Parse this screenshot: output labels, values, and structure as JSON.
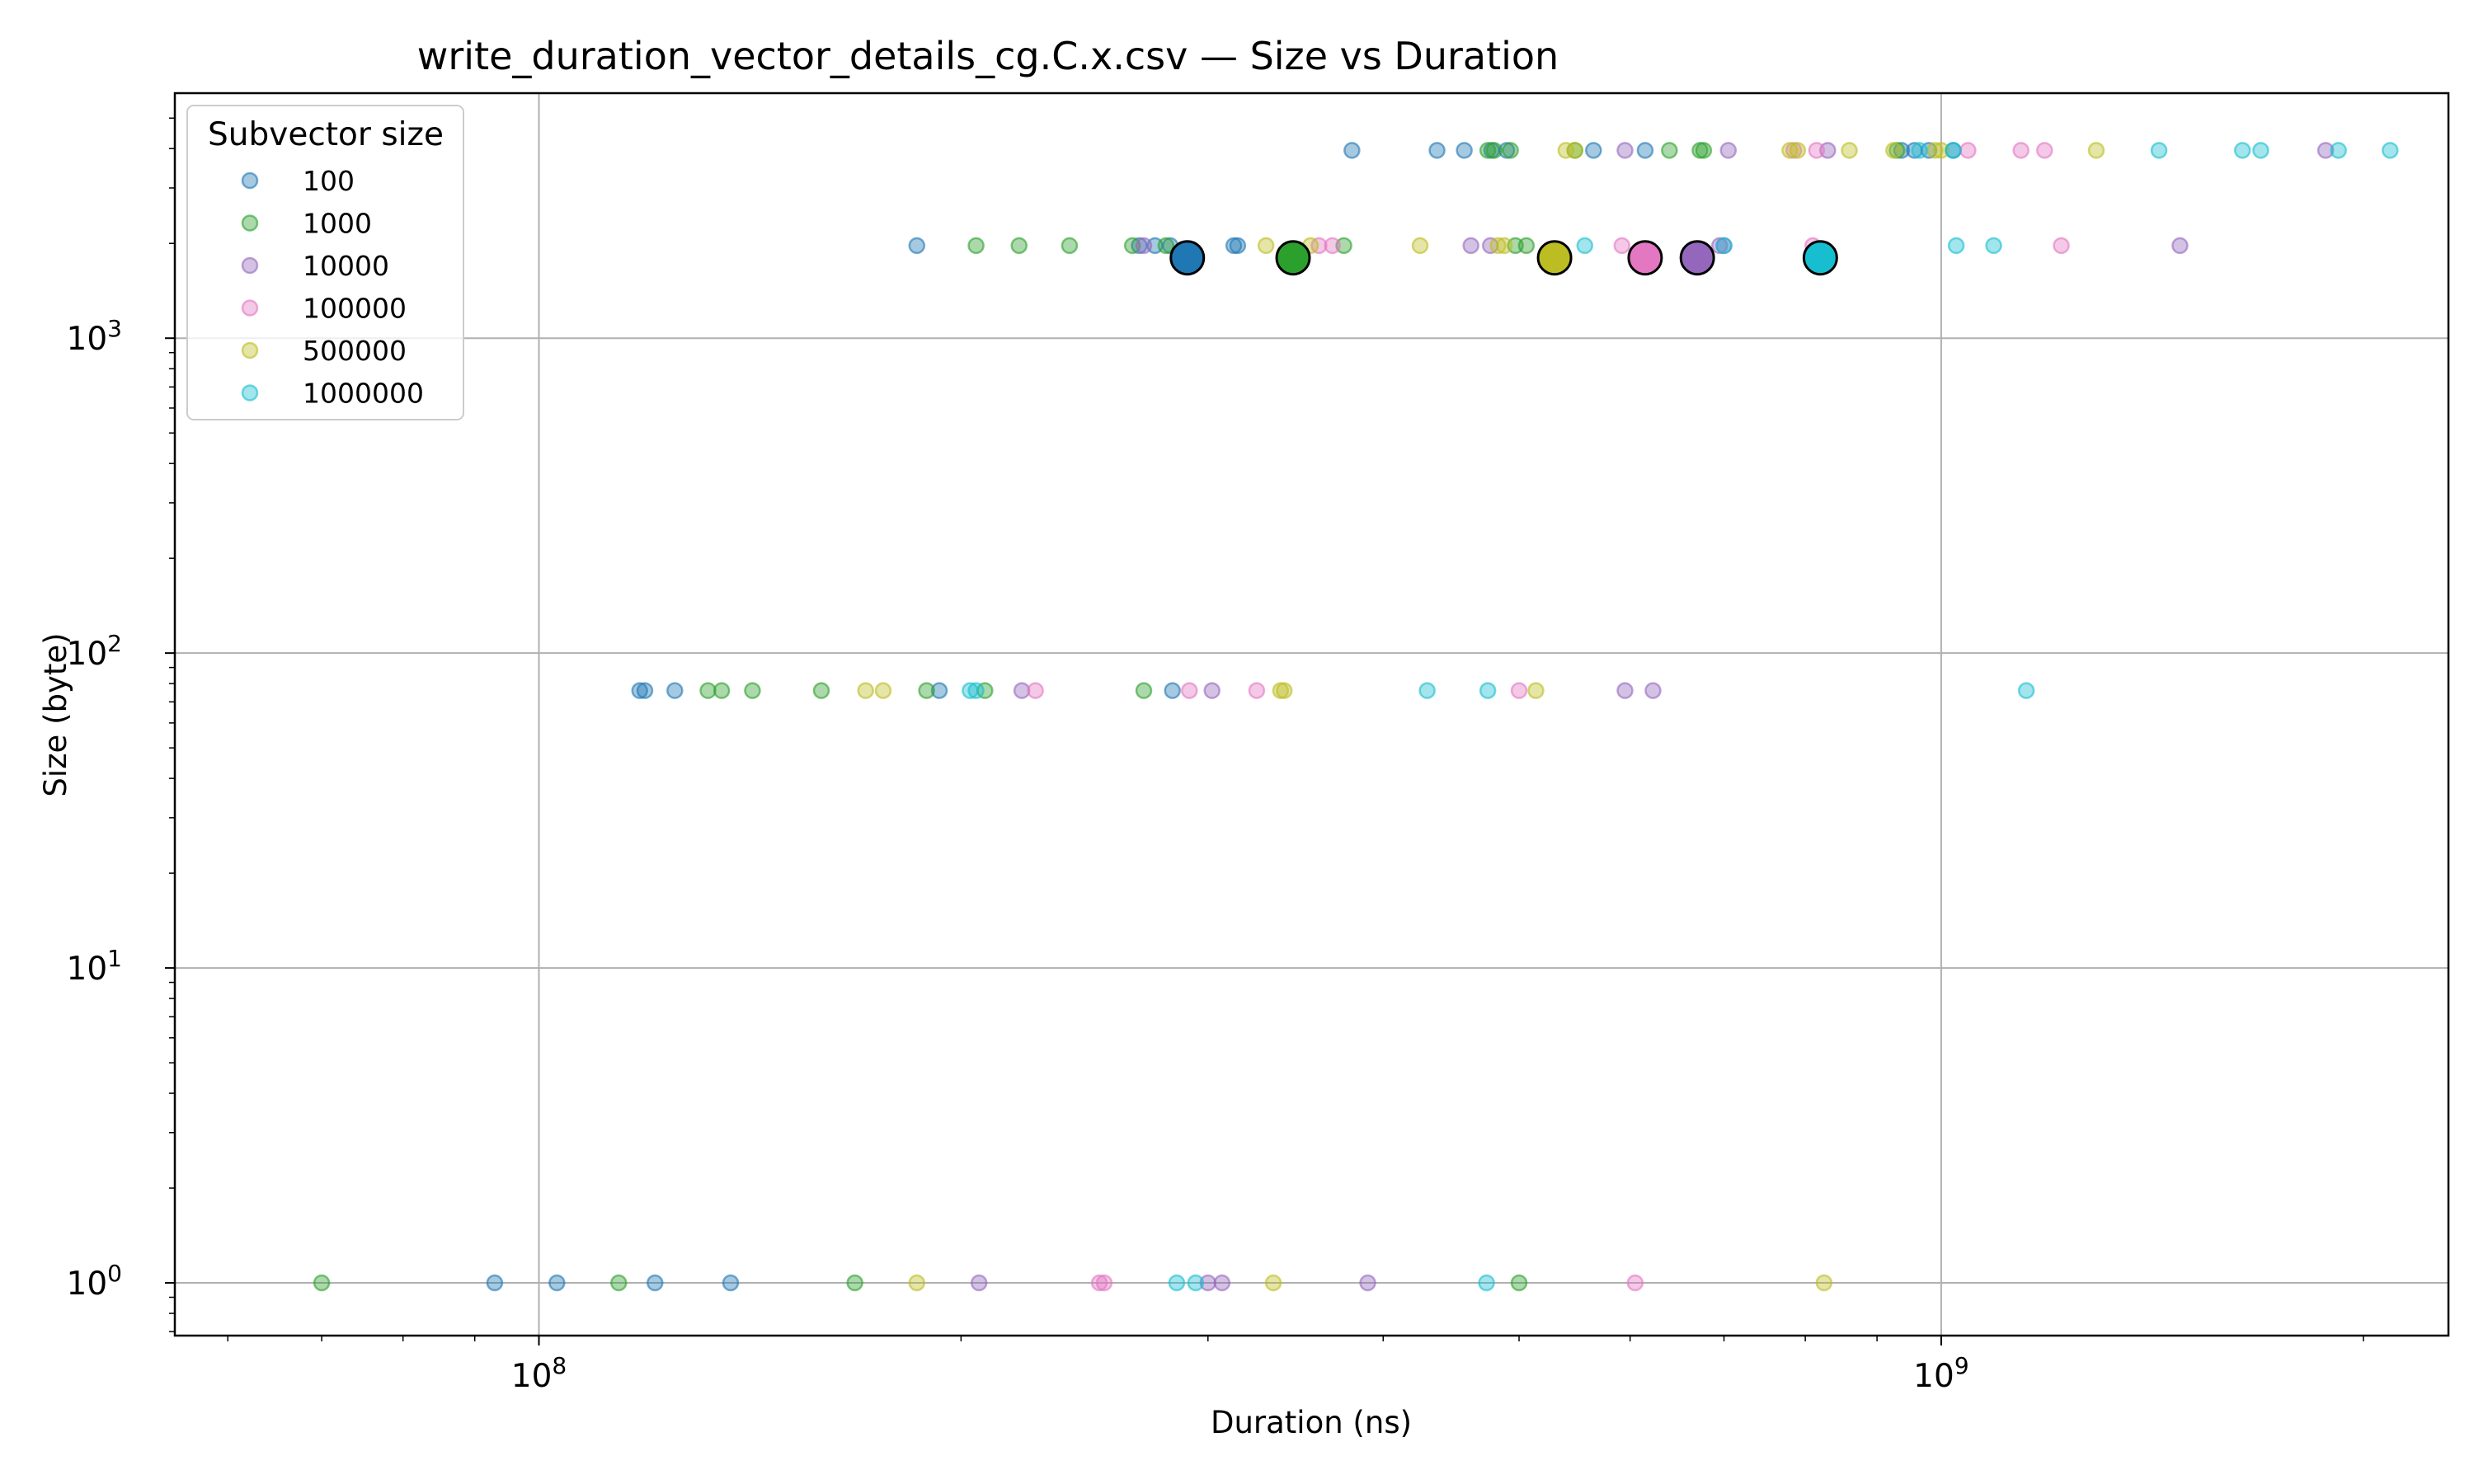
{
  "chart_data": {
    "type": "scatter",
    "title": "write_duration_vector_details_cg.C.x.csv — Size vs Duration",
    "xlabel": "Duration (ns)",
    "ylabel": "Size (byte)",
    "xscale": "log",
    "yscale": "log",
    "xlim": [
      55000000,
      2300000000
    ],
    "ylim": [
      0.68,
      6000
    ],
    "grid": true,
    "x_major_ticks": [
      {
        "value": 100000000,
        "base": "10",
        "exp": "8"
      },
      {
        "value": 1000000000,
        "base": "10",
        "exp": "9"
      }
    ],
    "y_major_ticks": [
      {
        "value": 1,
        "base": "10",
        "exp": "0"
      },
      {
        "value": 10,
        "base": "10",
        "exp": "1"
      },
      {
        "value": 100,
        "base": "10",
        "exp": "2"
      },
      {
        "value": 1000,
        "base": "10",
        "exp": "3"
      }
    ],
    "legend": {
      "title": "Subvector size",
      "position": "top-left"
    },
    "series": [
      {
        "name": "100",
        "color": "#1f77b4",
        "mean": [
          290000000,
          1800
        ],
        "points": [
          [
            93000000,
            1
          ],
          [
            103000000,
            1
          ],
          [
            121000000,
            1
          ],
          [
            137000000,
            1
          ],
          [
            118000000,
            76
          ],
          [
            119000000,
            76
          ],
          [
            125000000,
            76
          ],
          [
            193000000,
            76
          ],
          [
            283000000,
            76
          ],
          [
            186000000,
            1968
          ],
          [
            268000000,
            1968
          ],
          [
            275000000,
            1968
          ],
          [
            282000000,
            1968
          ],
          [
            313000000,
            1968
          ],
          [
            315000000,
            1968
          ],
          [
            380000000,
            3950
          ],
          [
            437000000,
            3950
          ],
          [
            457000000,
            3950
          ],
          [
            478000000,
            3950
          ],
          [
            490000000,
            3950
          ],
          [
            565000000,
            3950
          ],
          [
            615000000,
            3950
          ],
          [
            937000000,
            3950
          ],
          [
            957000000,
            3950
          ],
          [
            980000000,
            3950
          ],
          [
            1020000000,
            3950
          ]
        ]
      },
      {
        "name": "1000",
        "color": "#2ca02c",
        "mean": [
          345000000,
          1800
        ],
        "points": [
          [
            70000000,
            1
          ],
          [
            114000000,
            1
          ],
          [
            168000000,
            1
          ],
          [
            500000000,
            1
          ],
          [
            132000000,
            76
          ],
          [
            135000000,
            76
          ],
          [
            142000000,
            76
          ],
          [
            159000000,
            76
          ],
          [
            189000000,
            76
          ],
          [
            208000000,
            76
          ],
          [
            270000000,
            76
          ],
          [
            205000000,
            1968
          ],
          [
            220000000,
            1968
          ],
          [
            239000000,
            1968
          ],
          [
            265000000,
            1968
          ],
          [
            280000000,
            1968
          ],
          [
            375000000,
            1968
          ],
          [
            497000000,
            1968
          ],
          [
            506000000,
            1968
          ],
          [
            475000000,
            3950
          ],
          [
            480000000,
            3950
          ],
          [
            493000000,
            3950
          ],
          [
            548000000,
            3950
          ],
          [
            640000000,
            3950
          ],
          [
            673000000,
            3950
          ],
          [
            677000000,
            3950
          ],
          [
            930000000,
            3950
          ]
        ]
      },
      {
        "name": "10000",
        "color": "#9467bd",
        "mean": [
          670000000,
          1800
        ],
        "points": [
          [
            206000000,
            1
          ],
          [
            300000000,
            1
          ],
          [
            307000000,
            1
          ],
          [
            390000000,
            1
          ],
          [
            221000000,
            76
          ],
          [
            302000000,
            76
          ],
          [
            595000000,
            76
          ],
          [
            623000000,
            76
          ],
          [
            270000000,
            1968
          ],
          [
            462000000,
            1968
          ],
          [
            477000000,
            1968
          ],
          [
            695000000,
            1968
          ],
          [
            700000000,
            1968
          ],
          [
            1480000000,
            1968
          ],
          [
            595000000,
            3950
          ],
          [
            705000000,
            3950
          ],
          [
            830000000,
            3950
          ],
          [
            1880000000,
            3950
          ]
        ]
      },
      {
        "name": "100000",
        "color": "#e377c2",
        "mean": [
          615000000,
          1800
        ],
        "points": [
          [
            251000000,
            1
          ],
          [
            253000000,
            1
          ],
          [
            605000000,
            1
          ],
          [
            226000000,
            76
          ],
          [
            291000000,
            76
          ],
          [
            325000000,
            76
          ],
          [
            500000000,
            76
          ],
          [
            360000000,
            1968
          ],
          [
            368000000,
            1968
          ],
          [
            592000000,
            1968
          ],
          [
            810000000,
            1968
          ],
          [
            1218000000,
            1968
          ],
          [
            785000000,
            3950
          ],
          [
            815000000,
            3950
          ],
          [
            1045000000,
            3950
          ],
          [
            1140000000,
            3950
          ],
          [
            1185000000,
            3950
          ]
        ]
      },
      {
        "name": "500000",
        "color": "#bcbd22",
        "mean": [
          530000000,
          1800
        ],
        "points": [
          [
            186000000,
            1
          ],
          [
            334000000,
            1
          ],
          [
            825000000,
            1
          ],
          [
            171000000,
            76
          ],
          [
            176000000,
            76
          ],
          [
            338000000,
            76
          ],
          [
            340000000,
            76
          ],
          [
            514000000,
            76
          ],
          [
            330000000,
            1968
          ],
          [
            355000000,
            1968
          ],
          [
            425000000,
            1968
          ],
          [
            483000000,
            1968
          ],
          [
            488000000,
            1968
          ],
          [
            540000000,
            3950
          ],
          [
            548000000,
            3950
          ],
          [
            780000000,
            3950
          ],
          [
            790000000,
            3950
          ],
          [
            860000000,
            3950
          ],
          [
            925000000,
            3950
          ],
          [
            990000000,
            3950
          ],
          [
            1000000000,
            3950
          ],
          [
            1290000000,
            3950
          ]
        ]
      },
      {
        "name": "1000000",
        "color": "#17becf",
        "mean": [
          820000000,
          1800
        ],
        "points": [
          [
            285000000,
            1
          ],
          [
            294000000,
            1
          ],
          [
            474000000,
            1
          ],
          [
            203000000,
            76
          ],
          [
            205000000,
            76
          ],
          [
            430000000,
            76
          ],
          [
            475000000,
            76
          ],
          [
            1150000000,
            76
          ],
          [
            557000000,
            1968
          ],
          [
            700000000,
            1968
          ],
          [
            1025000000,
            1968
          ],
          [
            1090000000,
            1968
          ],
          [
            965000000,
            3950
          ],
          [
            1020000000,
            3950
          ],
          [
            1430000000,
            3950
          ],
          [
            1640000000,
            3950
          ],
          [
            1690000000,
            3950
          ],
          [
            1920000000,
            3950
          ],
          [
            2090000000,
            3950
          ]
        ]
      }
    ]
  }
}
